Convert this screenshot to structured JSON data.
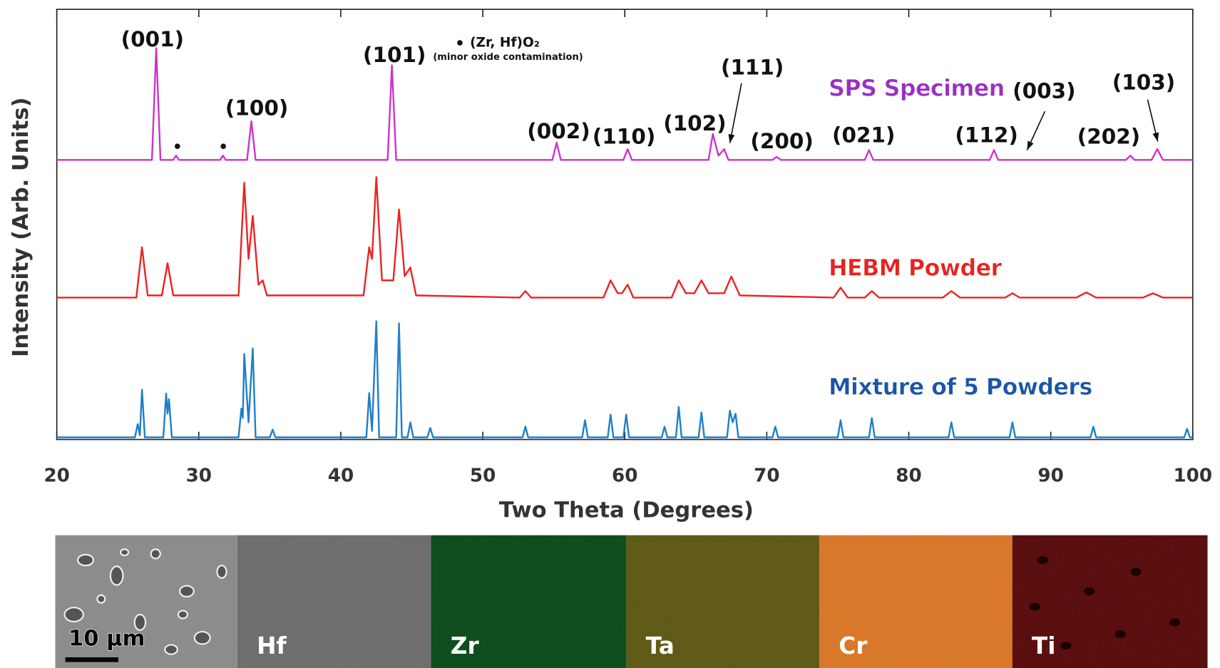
{
  "chart_data": {
    "type": "line",
    "xlabel": "Two Theta (Degrees)",
    "ylabel": "Intensity (Arb. Units)",
    "xlim": [
      20,
      100
    ],
    "xticks": [
      20,
      30,
      40,
      50,
      60,
      70,
      80,
      90,
      100
    ],
    "ylim": [
      0,
      100
    ],
    "series": [
      {
        "name": "SPS Specimen",
        "color": "#cc33cc",
        "label_color": "#9b2fc4",
        "x": [
          20,
          26.7,
          27,
          27.3,
          28.2,
          28.4,
          28.6,
          31.5,
          31.7,
          31.9,
          33.4,
          33.7,
          34,
          43.3,
          43.6,
          43.9,
          54.9,
          55.2,
          55.5,
          59.9,
          60.2,
          60.5,
          65.9,
          66.2,
          66.6,
          67,
          67.3,
          70.4,
          70.7,
          71,
          76.9,
          77.2,
          77.5,
          85.7,
          86,
          86.3,
          95.3,
          95.6,
          95.9,
          97.1,
          97.5,
          97.9,
          100
        ],
        "values": [
          65,
          65,
          91,
          65,
          65,
          66,
          65,
          65,
          66,
          65,
          65,
          74,
          65,
          65,
          87,
          65,
          65,
          69,
          65,
          65,
          67.5,
          65,
          65,
          71,
          66,
          67.5,
          65,
          65,
          65.7,
          65,
          65,
          67.3,
          65,
          65,
          67.3,
          65,
          65,
          66,
          65,
          65,
          67.5,
          65,
          65
        ]
      },
      {
        "name": "HEBM Powder",
        "color": "#ee2222",
        "label_color": "#e8221e",
        "x": [
          20,
          25.6,
          26,
          26.4,
          27.4,
          27.8,
          28.2,
          32.8,
          33.2,
          33.5,
          33.8,
          34.2,
          34.5,
          34.8,
          41.6,
          42,
          42.2,
          42.5,
          42.9,
          43.7,
          44.1,
          44.5,
          44.9,
          45.3,
          52.6,
          53,
          53.4,
          58.5,
          59,
          59.5,
          59.8,
          60.2,
          60.6,
          63.3,
          63.8,
          64.3,
          64.9,
          65.4,
          65.9,
          67,
          67.5,
          68.1,
          74.7,
          75.2,
          75.7,
          76.9,
          77.4,
          77.9,
          82.4,
          83,
          83.6,
          86.8,
          87.3,
          87.8,
          91.8,
          92.5,
          93.2,
          96.5,
          97.2,
          97.9,
          100
        ],
        "values": [
          33,
          33,
          44.7,
          33.5,
          33.5,
          41,
          33.5,
          33.5,
          59.7,
          42,
          52,
          36,
          37,
          33.5,
          33.5,
          44.7,
          42,
          61,
          37,
          37,
          53.5,
          38,
          40,
          33.5,
          33,
          34.5,
          33,
          33,
          37,
          34,
          34,
          36,
          33,
          33,
          37,
          34,
          34,
          37,
          34,
          34,
          37.9,
          33.5,
          33,
          35.3,
          33,
          33,
          34.5,
          33,
          33,
          34.5,
          33,
          33,
          34,
          33,
          33,
          34.2,
          33,
          33,
          34,
          33,
          33
        ]
      },
      {
        "name": "Mixture of 5 Powders",
        "color": "#1f7fc8",
        "label_color": "#1a55a8",
        "x": [
          20,
          25.5,
          25.7,
          25.85,
          26,
          26.2,
          27.5,
          27.7,
          27.8,
          27.9,
          28.1,
          32.8,
          33,
          33.1,
          33.2,
          33.5,
          33.8,
          34,
          35,
          35.2,
          35.4,
          41.8,
          42,
          42.2,
          42.5,
          42.7,
          43.9,
          44.1,
          44.3,
          44.7,
          44.9,
          45.1,
          46.1,
          46.3,
          46.5,
          52.8,
          53,
          53.2,
          57,
          57.2,
          57.4,
          58.8,
          59,
          59.2,
          59.9,
          60.1,
          60.3,
          62.6,
          62.8,
          63,
          63.6,
          63.8,
          64,
          65.2,
          65.4,
          65.6,
          67.2,
          67.4,
          67.6,
          67.8,
          68,
          70.4,
          70.6,
          70.8,
          75,
          75.2,
          75.4,
          77.2,
          77.4,
          77.6,
          82.8,
          83,
          83.2,
          87.1,
          87.3,
          87.5,
          92.8,
          93,
          93.2,
          99.4,
          99.6,
          99.8,
          100
        ],
        "values": [
          0.5,
          0.5,
          3.6,
          1,
          11.6,
          0.5,
          0.5,
          10.7,
          6,
          9.4,
          0.5,
          0.5,
          7.2,
          5,
          19.9,
          4,
          21.2,
          0.5,
          0.5,
          2.3,
          0.5,
          0.5,
          10.8,
          2,
          27.5,
          0.5,
          0.5,
          27,
          0.5,
          0.5,
          4,
          0.5,
          0.5,
          2.7,
          0.5,
          0.5,
          3,
          0.5,
          0.5,
          4.5,
          0.5,
          0.5,
          5.8,
          0.5,
          0.5,
          5.8,
          0.5,
          0.5,
          3,
          0.5,
          0.5,
          7.6,
          0.5,
          0.5,
          6.3,
          0.5,
          0.5,
          6.7,
          4,
          6,
          0.5,
          0.5,
          3,
          0.5,
          0.5,
          4.5,
          0.5,
          0.5,
          5,
          0.5,
          0.5,
          4,
          0.5,
          0.5,
          4,
          0.5,
          0.5,
          3,
          0.5,
          0.5,
          2.5,
          0.5,
          0.5
        ]
      }
    ],
    "annotations": [
      "(001)",
      "(101)",
      "(100)",
      "(002)",
      "(110)",
      "(102)",
      "(111)",
      "(200)",
      "(021)",
      "(112)",
      "(003)",
      "(202)",
      "(103)"
    ],
    "oxide_label": "(Zr, Hf)O₂",
    "oxide_note": "(minor oxide contamination)"
  },
  "eds_maps": {
    "scale_bar": "10 µm",
    "labels": [
      "Hf",
      "Zr",
      "Ta",
      "Cr",
      "Ti"
    ]
  }
}
